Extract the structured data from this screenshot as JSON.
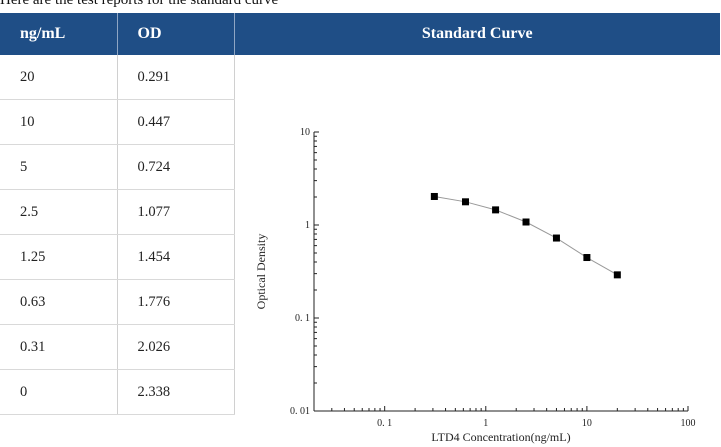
{
  "header_text": "Here are the test reports for the standard curve",
  "table": {
    "headers": [
      "ng/mL",
      "OD"
    ],
    "rows": [
      [
        "20",
        "0.291"
      ],
      [
        "10",
        "0.447"
      ],
      [
        "5",
        "0.724"
      ],
      [
        "2.5",
        "1.077"
      ],
      [
        "1.25",
        "1.454"
      ],
      [
        "0.63",
        "1.776"
      ],
      [
        "0.31",
        "2.026"
      ],
      [
        "0",
        "2.338"
      ]
    ]
  },
  "chart_title": "Standard Curve",
  "chart_data": {
    "type": "scatter",
    "title": "",
    "xlabel": "LTD4 Concentration(ng/mL)",
    "ylabel": "Optical Density",
    "x_scale": "log",
    "y_scale": "log",
    "xlim": [
      0.02,
      100
    ],
    "ylim": [
      0.01,
      10
    ],
    "x_ticks": [
      0.1,
      1,
      10,
      100
    ],
    "x_tick_labels": [
      "0. 1",
      "1",
      "10",
      "100"
    ],
    "y_ticks": [
      0.01,
      0.1,
      1,
      10
    ],
    "y_tick_labels": [
      "0. 01",
      "0. 1",
      "1",
      "10"
    ],
    "grid": false,
    "marker": "square",
    "series": [
      {
        "x": [
          0.31,
          0.63,
          1.25,
          2.5,
          5,
          10,
          20
        ],
        "y": [
          2.026,
          1.776,
          1.454,
          1.077,
          0.724,
          0.447,
          0.291
        ]
      }
    ],
    "colors": {
      "marker": "#000000",
      "line": "#999999",
      "axis": "#222222"
    }
  }
}
